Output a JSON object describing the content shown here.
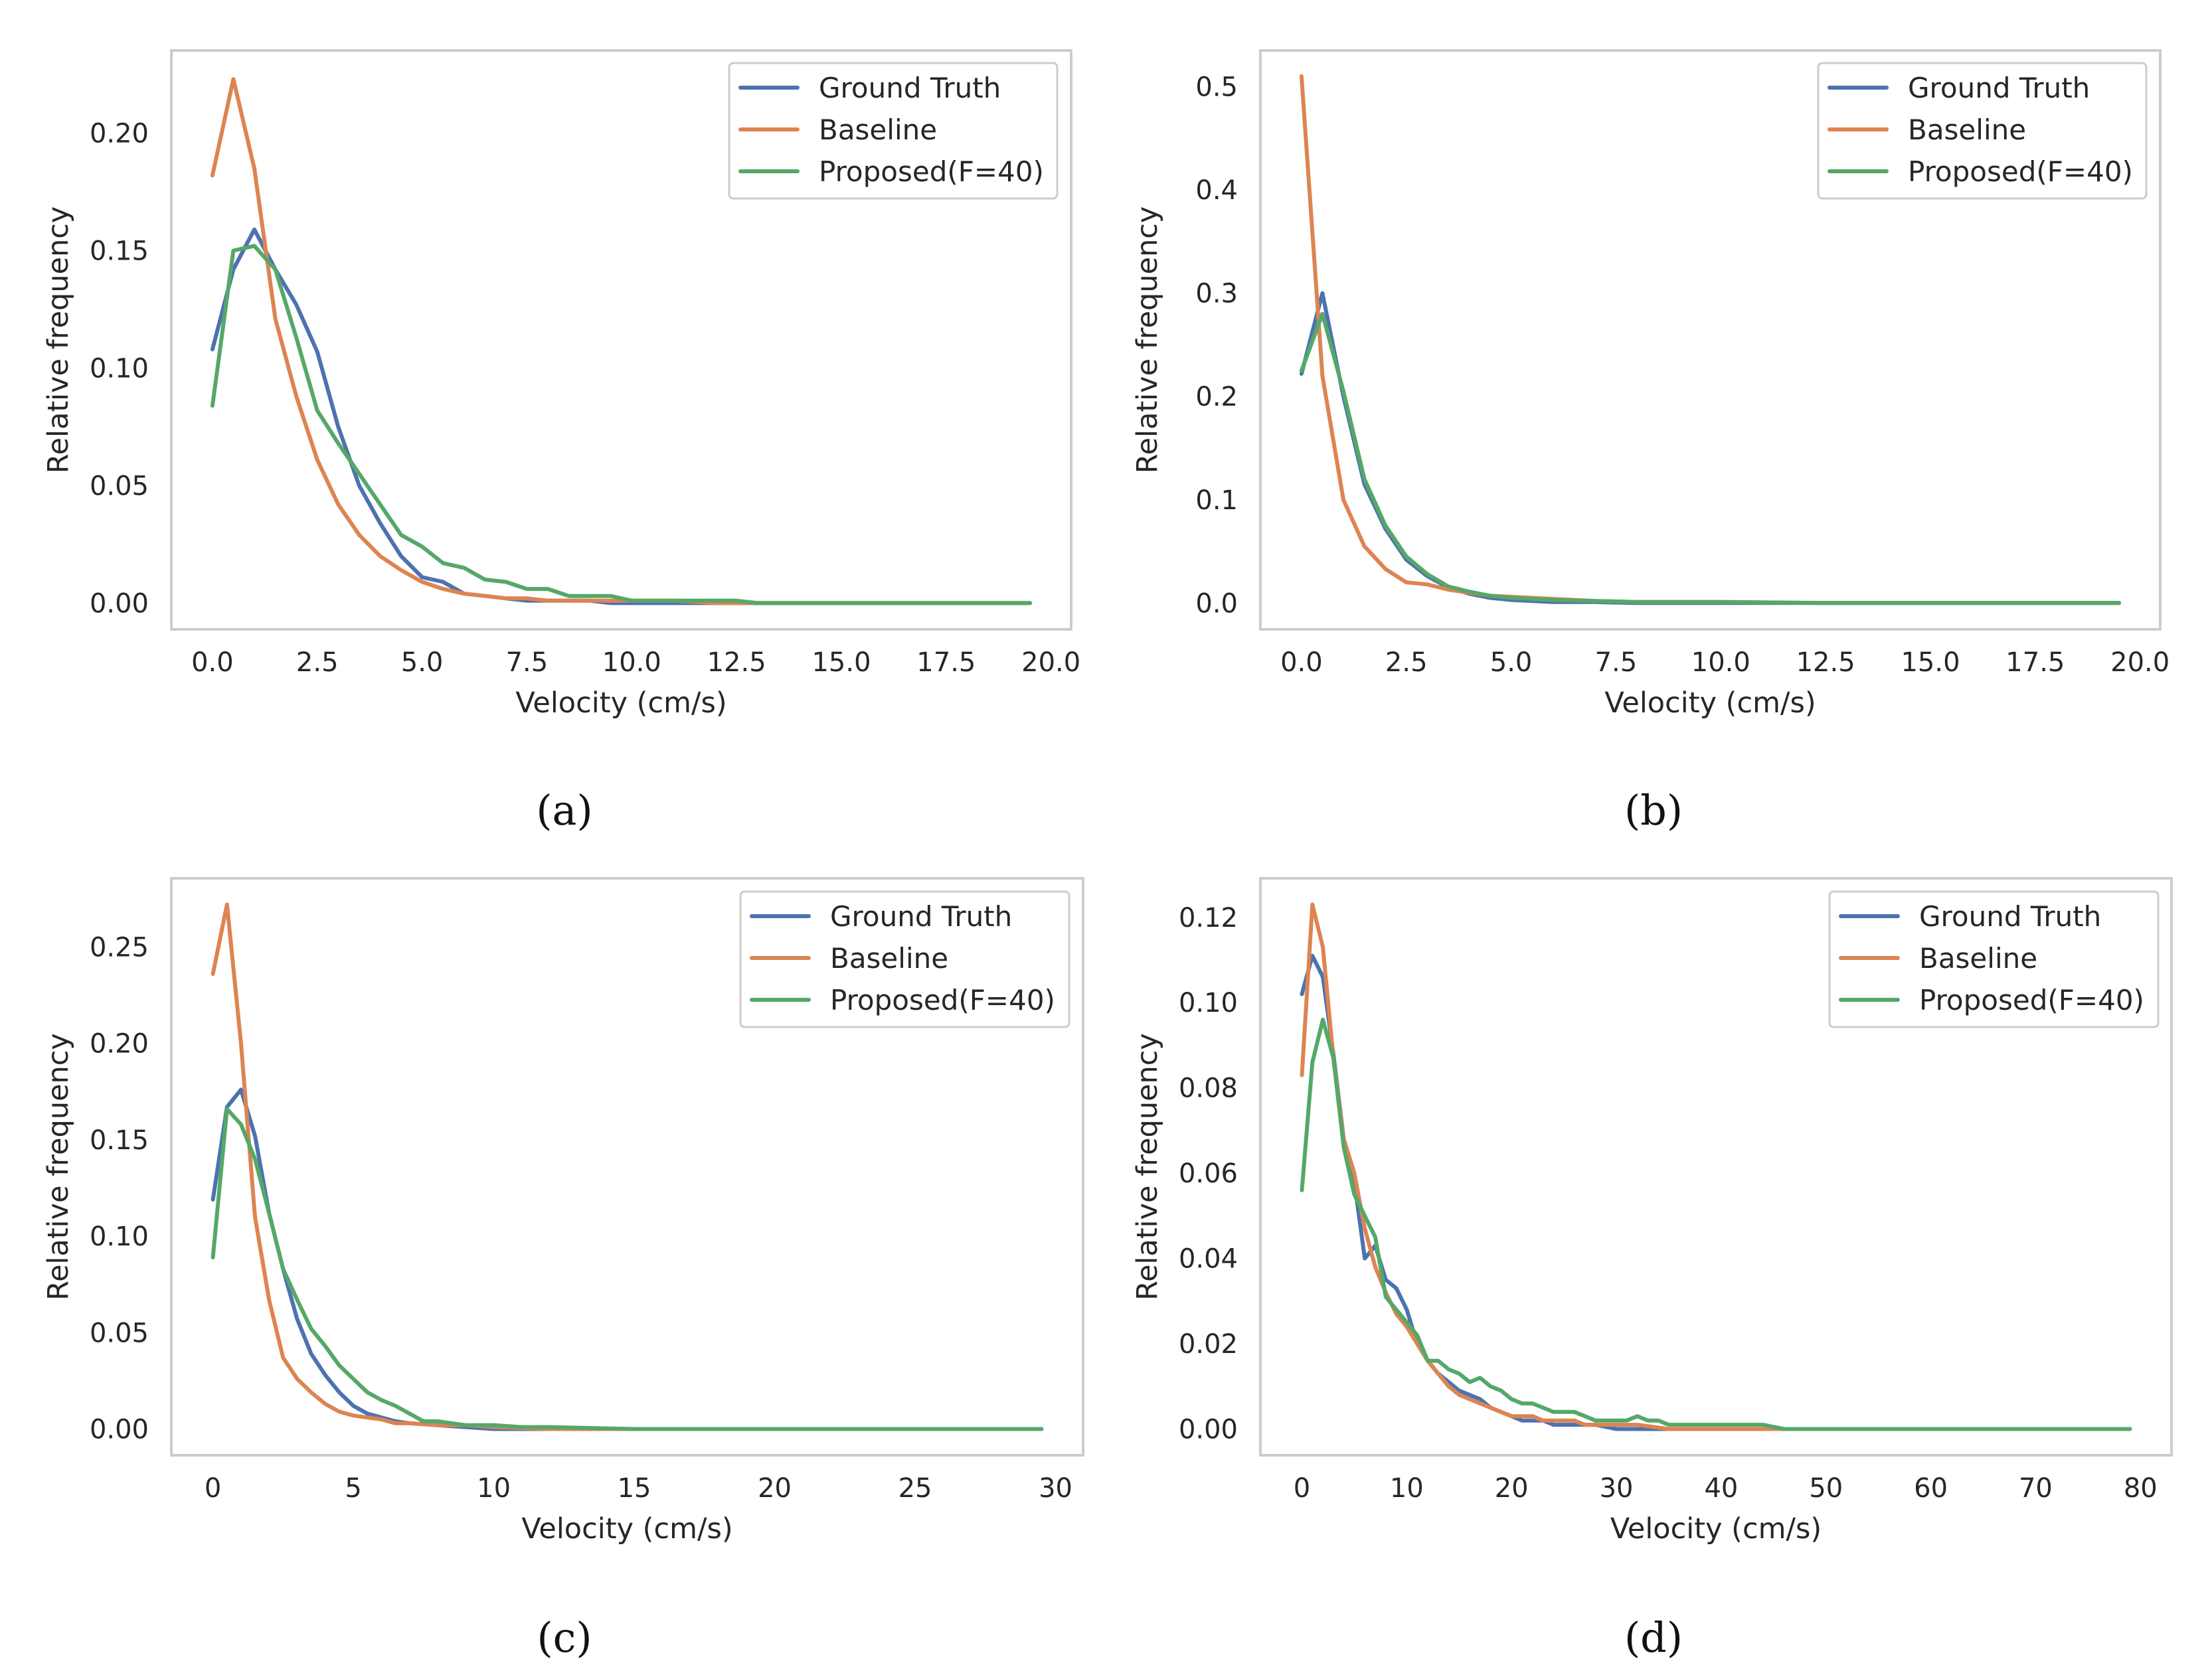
{
  "colors": {
    "ground_truth": "#4c72b0",
    "baseline": "#dd8452",
    "proposed": "#55a868",
    "frame": "#cccccc",
    "text": "#262626"
  },
  "chart_data": [
    {
      "type": "line",
      "panel_label": "(a)",
      "xlabel": "Velocity (cm/s)",
      "ylabel": "Relative frequency",
      "xlim": [
        -0.98,
        20.48
      ],
      "ylim": [
        -0.0112,
        0.2352
      ],
      "xticks": [
        0,
        2.5,
        5,
        7.5,
        10,
        12.5,
        15,
        17.5,
        20
      ],
      "xtick_labels": [
        "0.0",
        "2.5",
        "5.0",
        "7.5",
        "10.0",
        "12.5",
        "15.0",
        "17.5",
        "20.0"
      ],
      "yticks": [
        0,
        0.05,
        0.1,
        0.15,
        0.2
      ],
      "ytick_labels": [
        "0.00",
        "0.05",
        "0.10",
        "0.15",
        "0.20"
      ],
      "grid": false,
      "legend": "upper right",
      "series": [
        {
          "name": "Ground Truth",
          "x": [
            0,
            0.5,
            1,
            1.5,
            2,
            2.5,
            3,
            3.5,
            4,
            4.5,
            5,
            5.5,
            6,
            6.5,
            7,
            7.5,
            8,
            8.5,
            9,
            9.5,
            10,
            11,
            12,
            13,
            15,
            17.5,
            19.5
          ],
          "y": [
            0.108,
            0.142,
            0.159,
            0.142,
            0.127,
            0.107,
            0.075,
            0.05,
            0.034,
            0.02,
            0.011,
            0.009,
            0.004,
            0.003,
            0.002,
            0.001,
            0.001,
            0.001,
            0.001,
            0,
            0,
            0,
            0,
            0,
            0,
            0,
            0
          ]
        },
        {
          "name": "Baseline",
          "x": [
            0,
            0.5,
            1,
            1.5,
            2,
            2.5,
            3,
            3.5,
            4,
            4.5,
            5,
            5.5,
            6,
            6.5,
            7,
            7.5,
            8,
            8.5,
            9,
            9.5,
            10,
            11,
            12,
            13,
            15,
            17.5,
            19.5
          ],
          "y": [
            0.182,
            0.223,
            0.185,
            0.121,
            0.088,
            0.061,
            0.042,
            0.029,
            0.02,
            0.014,
            0.009,
            0.006,
            0.004,
            0.003,
            0.002,
            0.002,
            0.001,
            0.001,
            0.001,
            0.001,
            0.001,
            0.001,
            0,
            0,
            0,
            0,
            0
          ]
        },
        {
          "name": "Proposed(F=40)",
          "x": [
            0,
            0.5,
            1,
            1.5,
            2,
            2.5,
            3,
            3.5,
            4,
            4.5,
            5,
            5.5,
            6,
            6.5,
            7,
            7.5,
            8,
            8.5,
            9,
            9.5,
            10,
            10.5,
            11,
            11.5,
            12,
            12.5,
            13,
            15,
            17.5,
            19.5
          ],
          "y": [
            0.084,
            0.15,
            0.152,
            0.142,
            0.113,
            0.082,
            0.068,
            0.055,
            0.042,
            0.029,
            0.024,
            0.017,
            0.015,
            0.01,
            0.009,
            0.006,
            0.006,
            0.003,
            0.003,
            0.003,
            0.001,
            0.001,
            0.001,
            0.001,
            0.001,
            0.001,
            0,
            0,
            0,
            0
          ]
        }
      ]
    },
    {
      "type": "line",
      "panel_label": "(b)",
      "xlabel": "Velocity (cm/s)",
      "ylabel": "Relative frequency",
      "xlim": [
        -0.98,
        20.48
      ],
      "ylim": [
        -0.0255,
        0.535
      ],
      "xticks": [
        0,
        2.5,
        5,
        7.5,
        10,
        12.5,
        15,
        17.5,
        20
      ],
      "xtick_labels": [
        "0.0",
        "2.5",
        "5.0",
        "7.5",
        "10.0",
        "12.5",
        "15.0",
        "17.5",
        "20.0"
      ],
      "yticks": [
        0,
        0.1,
        0.2,
        0.3,
        0.4,
        0.5
      ],
      "ytick_labels": [
        "0.0",
        "0.1",
        "0.2",
        "0.3",
        "0.4",
        "0.5"
      ],
      "grid": false,
      "legend": "upper right",
      "series": [
        {
          "name": "Ground Truth",
          "x": [
            0,
            0.5,
            1,
            1.5,
            2,
            2.5,
            3,
            3.5,
            4,
            4.5,
            5,
            6,
            7,
            8,
            10,
            12.5,
            15,
            17.5,
            19.5
          ],
          "y": [
            0.222,
            0.3,
            0.2,
            0.115,
            0.072,
            0.042,
            0.026,
            0.015,
            0.009,
            0.005,
            0.003,
            0.001,
            0.001,
            0,
            0,
            0,
            0,
            0,
            0
          ]
        },
        {
          "name": "Baseline",
          "x": [
            0,
            0.5,
            1,
            1.5,
            2,
            2.5,
            3,
            3.5,
            4,
            4.5,
            5,
            6,
            7,
            8,
            10,
            12.5,
            15,
            17.5,
            19.5
          ],
          "y": [
            0.51,
            0.22,
            0.1,
            0.055,
            0.033,
            0.02,
            0.018,
            0.013,
            0.01,
            0.007,
            0.006,
            0.004,
            0.002,
            0.001,
            0.001,
            0,
            0,
            0,
            0
          ]
        },
        {
          "name": "Proposed(F=40)",
          "x": [
            0,
            0.5,
            1,
            1.5,
            2,
            2.5,
            3,
            3.5,
            4,
            4.5,
            5,
            6,
            7,
            8,
            10,
            12.5,
            15,
            17.5,
            19.5
          ],
          "y": [
            0.225,
            0.28,
            0.205,
            0.12,
            0.075,
            0.045,
            0.028,
            0.016,
            0.011,
            0.007,
            0.005,
            0.003,
            0.002,
            0.001,
            0.001,
            0,
            0,
            0,
            0
          ]
        }
      ]
    },
    {
      "type": "line",
      "panel_label": "(c)",
      "xlabel": "Velocity (cm/s)",
      "ylabel": "Relative frequency",
      "xlim": [
        -1.48,
        30.98
      ],
      "ylim": [
        -0.0136,
        0.2856
      ],
      "xticks": [
        0,
        5,
        10,
        15,
        20,
        25,
        30
      ],
      "xtick_labels": [
        "0",
        "5",
        "10",
        "15",
        "20",
        "25",
        "30"
      ],
      "yticks": [
        0,
        0.05,
        0.1,
        0.15,
        0.2,
        0.25
      ],
      "ytick_labels": [
        "0.00",
        "0.05",
        "0.10",
        "0.15",
        "0.20",
        "0.25"
      ],
      "grid": false,
      "legend": "upper right",
      "series": [
        {
          "name": "Ground Truth",
          "x": [
            0,
            0.5,
            1,
            1.5,
            2,
            2.5,
            3,
            3.5,
            4,
            4.5,
            5,
            5.5,
            6,
            6.5,
            7,
            8,
            9,
            10,
            12,
            15,
            20,
            25,
            29.5
          ],
          "y": [
            0.119,
            0.167,
            0.176,
            0.152,
            0.112,
            0.083,
            0.057,
            0.039,
            0.028,
            0.019,
            0.012,
            0.008,
            0.006,
            0.004,
            0.003,
            0.002,
            0.001,
            0,
            0,
            0,
            0,
            0,
            0
          ]
        },
        {
          "name": "Baseline",
          "x": [
            0,
            0.5,
            1,
            1.5,
            2,
            2.5,
            3,
            3.5,
            4,
            4.5,
            5,
            5.5,
            6,
            6.5,
            7,
            8,
            9,
            10,
            12,
            15,
            20,
            25,
            29.5
          ],
          "y": [
            0.236,
            0.272,
            0.2,
            0.11,
            0.067,
            0.037,
            0.026,
            0.019,
            0.013,
            0.009,
            0.007,
            0.006,
            0.005,
            0.003,
            0.003,
            0.002,
            0.002,
            0.001,
            0,
            0,
            0,
            0,
            0
          ]
        },
        {
          "name": "Proposed(F=40)",
          "x": [
            0,
            0.5,
            1,
            1.5,
            2,
            2.5,
            3,
            3.5,
            4,
            4.5,
            5,
            5.5,
            6,
            6.5,
            7,
            7.5,
            8,
            8.5,
            9,
            9.5,
            10,
            11,
            12,
            15,
            20,
            25,
            29.5
          ],
          "y": [
            0.089,
            0.166,
            0.158,
            0.14,
            0.112,
            0.083,
            0.067,
            0.052,
            0.043,
            0.033,
            0.026,
            0.019,
            0.015,
            0.012,
            0.008,
            0.004,
            0.004,
            0.003,
            0.002,
            0.002,
            0.002,
            0.001,
            0.001,
            0,
            0,
            0,
            0
          ]
        }
      ]
    },
    {
      "type": "line",
      "panel_label": "(d)",
      "xlabel": "Velocity (cm/s)",
      "ylabel": "Relative frequency",
      "xlim": [
        -3.96,
        82.96
      ],
      "ylim": [
        -0.00615,
        0.12915
      ],
      "xticks": [
        0,
        10,
        20,
        30,
        40,
        50,
        60,
        70,
        80
      ],
      "xtick_labels": [
        "0",
        "10",
        "20",
        "30",
        "40",
        "50",
        "60",
        "70",
        "80"
      ],
      "yticks": [
        0,
        0.02,
        0.04,
        0.06,
        0.08,
        0.1,
        0.12
      ],
      "ytick_labels": [
        "0.00",
        "0.02",
        "0.04",
        "0.06",
        "0.08",
        "0.10",
        "0.12"
      ],
      "grid": false,
      "legend": "upper right",
      "series": [
        {
          "name": "Ground Truth",
          "x": [
            0,
            1,
            2,
            3,
            4,
            5,
            6,
            7,
            8,
            9,
            10,
            11,
            12,
            13,
            14,
            15,
            16,
            17,
            18,
            19,
            20,
            21,
            22,
            23,
            24,
            25,
            26,
            27,
            28,
            30,
            32,
            35,
            40,
            50,
            60,
            70,
            79
          ],
          "y": [
            0.102,
            0.111,
            0.106,
            0.088,
            0.068,
            0.058,
            0.04,
            0.043,
            0.035,
            0.033,
            0.028,
            0.02,
            0.016,
            0.013,
            0.011,
            0.009,
            0.008,
            0.007,
            0.005,
            0.004,
            0.003,
            0.002,
            0.002,
            0.002,
            0.001,
            0.001,
            0.001,
            0.001,
            0.001,
            0,
            0,
            0,
            0,
            0,
            0,
            0,
            0
          ]
        },
        {
          "name": "Baseline",
          "x": [
            0,
            1,
            2,
            3,
            4,
            5,
            6,
            7,
            8,
            9,
            10,
            11,
            12,
            13,
            14,
            15,
            16,
            17,
            18,
            19,
            20,
            21,
            22,
            23,
            24,
            25,
            26,
            27,
            28,
            29,
            30,
            32,
            35,
            40,
            50,
            60,
            70,
            79
          ],
          "y": [
            0.083,
            0.123,
            0.113,
            0.087,
            0.068,
            0.06,
            0.047,
            0.038,
            0.032,
            0.027,
            0.024,
            0.02,
            0.016,
            0.013,
            0.01,
            0.008,
            0.007,
            0.006,
            0.005,
            0.004,
            0.003,
            0.003,
            0.003,
            0.002,
            0.002,
            0.002,
            0.002,
            0.001,
            0.001,
            0.001,
            0.001,
            0.001,
            0,
            0,
            0,
            0,
            0,
            0
          ]
        },
        {
          "name": "Proposed(F=40)",
          "x": [
            0,
            1,
            2,
            3,
            4,
            5,
            6,
            7,
            8,
            9,
            10,
            11,
            12,
            13,
            14,
            15,
            16,
            17,
            18,
            19,
            20,
            21,
            22,
            23,
            24,
            25,
            26,
            27,
            28,
            29,
            30,
            31,
            32,
            33,
            34,
            35,
            36,
            38,
            40,
            42,
            44,
            46,
            50,
            60,
            70,
            79
          ],
          "y": [
            0.056,
            0.086,
            0.096,
            0.087,
            0.066,
            0.055,
            0.05,
            0.045,
            0.031,
            0.028,
            0.025,
            0.022,
            0.016,
            0.016,
            0.014,
            0.013,
            0.011,
            0.012,
            0.01,
            0.009,
            0.007,
            0.006,
            0.006,
            0.005,
            0.004,
            0.004,
            0.004,
            0.003,
            0.002,
            0.002,
            0.002,
            0.002,
            0.003,
            0.002,
            0.002,
            0.001,
            0.001,
            0.001,
            0.001,
            0.001,
            0.001,
            0,
            0,
            0,
            0,
            0
          ]
        }
      ]
    }
  ]
}
